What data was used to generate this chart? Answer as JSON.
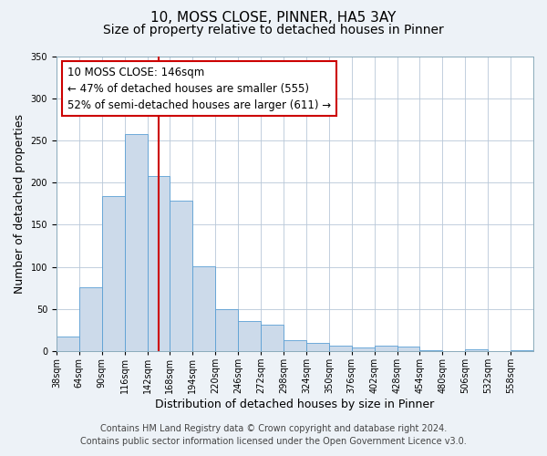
{
  "title": "10, MOSS CLOSE, PINNER, HA5 3AY",
  "subtitle": "Size of property relative to detached houses in Pinner",
  "xlabel": "Distribution of detached houses by size in Pinner",
  "ylabel": "Number of detached properties",
  "bar_values": [
    17,
    76,
    184,
    258,
    208,
    179,
    101,
    50,
    36,
    31,
    13,
    10,
    6,
    4,
    6,
    5,
    1,
    0,
    2,
    0,
    1
  ],
  "bar_labels": [
    "38sqm",
    "64sqm",
    "90sqm",
    "116sqm",
    "142sqm",
    "168sqm",
    "194sqm",
    "220sqm",
    "246sqm",
    "272sqm",
    "298sqm",
    "324sqm",
    "350sqm",
    "376sqm",
    "402sqm",
    "428sqm",
    "454sqm",
    "480sqm",
    "506sqm",
    "532sqm",
    "558sqm"
  ],
  "bar_color": "#ccdaea",
  "bar_edge_color": "#5a9fd4",
  "vline_color": "#cc0000",
  "annotation_lines": [
    "10 MOSS CLOSE: 146sqm",
    "← 47% of detached houses are smaller (555)",
    "52% of semi-detached houses are larger (611) →"
  ],
  "box_edge_color": "#cc0000",
  "ylim": [
    0,
    350
  ],
  "yticks": [
    0,
    50,
    100,
    150,
    200,
    250,
    300,
    350
  ],
  "footer_line1": "Contains HM Land Registry data © Crown copyright and database right 2024.",
  "footer_line2": "Contains public sector information licensed under the Open Government Licence v3.0.",
  "background_color": "#edf2f7",
  "plot_bg_color": "#ffffff",
  "title_fontsize": 11,
  "subtitle_fontsize": 10,
  "axis_label_fontsize": 9,
  "tick_fontsize": 7,
  "footer_fontsize": 7,
  "annotation_fontsize": 8.5
}
